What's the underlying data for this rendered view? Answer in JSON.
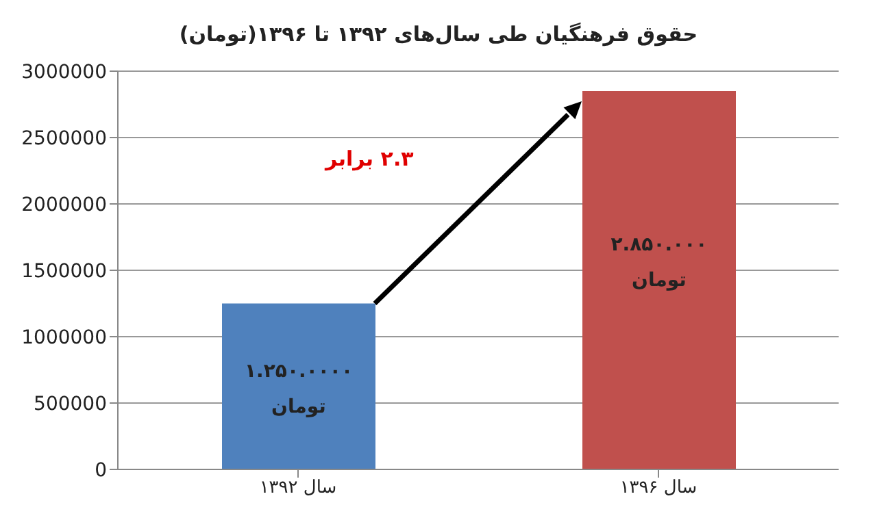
{
  "chart_data": {
    "type": "bar",
    "title": "حقوق فرهنگیان طی سال‌های ۱۳۹۲ تا ۱۳۹۶(تومان)",
    "categories": [
      "سال ۱۳۹۲",
      "سال ۱۳۹۶"
    ],
    "values": [
      1250000,
      2850000
    ],
    "colors": [
      "#4f81bd",
      "#c0504d"
    ],
    "value_labels": [
      "۱.۲۵۰.۰۰۰۰\nتومان",
      "۲.۸۵۰.۰۰۰\nتومان"
    ],
    "annotations": [
      "۲.۳ برابر"
    ],
    "ylim": [
      0,
      3000000
    ],
    "yticks": [
      0,
      500000,
      1000000,
      1500000,
      2000000,
      2500000,
      3000000
    ],
    "grid": "y"
  }
}
